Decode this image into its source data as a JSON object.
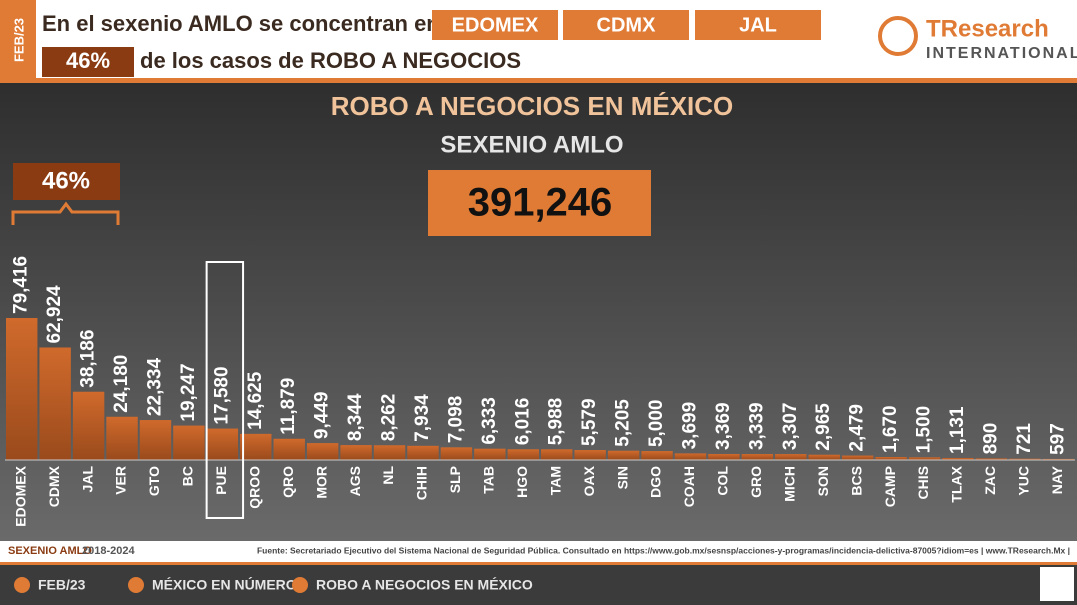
{
  "header": {
    "date": "FEB/23",
    "line1": "En el sexenio AMLO se concentran en",
    "tags": [
      "EDOMEX",
      "CDMX",
      "JAL"
    ],
    "share": "46%",
    "line2": "de los casos de ROBO A NEGOCIOS",
    "logo": "TResearch",
    "logo_sub": "INTERNATIONAL"
  },
  "chart_data": {
    "type": "bar",
    "title": "ROBO A NEGOCIOS EN MÉXICO",
    "subtitle": "SEXENIO AMLO",
    "total": "391,246",
    "bracket_label": "46%",
    "color": "#c0622a",
    "categories": [
      "EDOMEX",
      "CDMX",
      "JAL",
      "VER",
      "GTO",
      "BC",
      "PUE",
      "QROO",
      "QRO",
      "MOR",
      "AGS",
      "NL",
      "CHIH",
      "SLP",
      "TAB",
      "HGO",
      "TAM",
      "OAX",
      "SIN",
      "DGO",
      "COAH",
      "COL",
      "GRO",
      "MICH",
      "SON",
      "BCS",
      "CAMP",
      "CHIS",
      "TLAX",
      "ZAC",
      "YUC",
      "NAY"
    ],
    "values": [
      79416,
      62924,
      38186,
      24180,
      22334,
      19247,
      17580,
      14625,
      11879,
      9449,
      8344,
      8262,
      7934,
      7098,
      6333,
      6016,
      5988,
      5579,
      5205,
      5000,
      3699,
      3369,
      3339,
      3307,
      2965,
      2479,
      1670,
      1500,
      1131,
      890,
      721,
      597
    ],
    "value_labels": [
      "79,416",
      "62,924",
      "38,186",
      "24,180",
      "22,334",
      "19,247",
      "17,580",
      "14,625",
      "11,879",
      "9,449",
      "8,344",
      "8,262",
      "7,934",
      "7,098",
      "6,333",
      "6,016",
      "5,988",
      "5,579",
      "5,205",
      "5,000",
      "3,699",
      "3,369",
      "3,339",
      "3,307",
      "2,965",
      "2,479",
      "1,670",
      "1,500",
      "1,131",
      "890",
      "721",
      "597"
    ]
  },
  "footer": {
    "period": "SEXENIO AMLO",
    "years": "2018-2024",
    "source": "Fuente: Secretariado Ejecutivo del Sistema Nacional de Seguridad Pública. Consultado en https://www.gob.mx/sesnsp/acciones-y-programas/incidencia-delictiva-87005?idiom=es | www.TResearch.Mx |",
    "nav": [
      "FEB/23",
      "MÉXICO EN NÚMEROS",
      "ROBO A NEGOCIOS EN MÉXICO"
    ]
  }
}
